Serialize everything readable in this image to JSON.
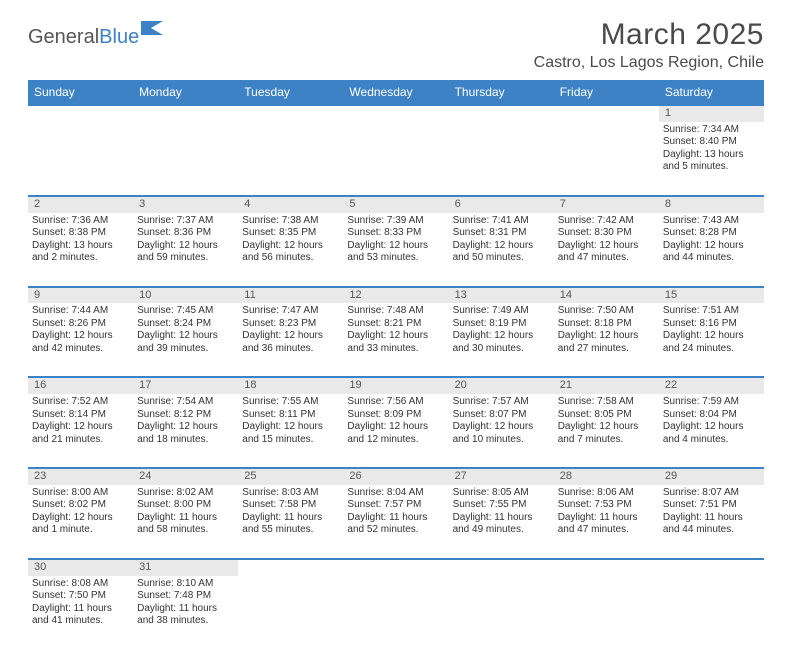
{
  "logo": {
    "text1": "General",
    "text2": "Blue"
  },
  "title": "March 2025",
  "location": "Castro, Los Lagos Region, Chile",
  "colors": {
    "header_bg": "#3d82c4",
    "header_text": "#ffffff",
    "daynum_bg": "#e9e9e9",
    "cell_text": "#333333",
    "page_bg": "#ffffff"
  },
  "typography": {
    "title_fontsize": 30,
    "location_fontsize": 16,
    "weekday_fontsize": 12,
    "cell_fontsize": 10
  },
  "weekdays": [
    "Sunday",
    "Monday",
    "Tuesday",
    "Wednesday",
    "Thursday",
    "Friday",
    "Saturday"
  ],
  "weeks": [
    {
      "nums": [
        "",
        "",
        "",
        "",
        "",
        "",
        "1"
      ],
      "cells": [
        null,
        null,
        null,
        null,
        null,
        null,
        {
          "sunrise": "Sunrise: 7:34 AM",
          "sunset": "Sunset: 8:40 PM",
          "day1": "Daylight: 13 hours",
          "day2": "and 5 minutes."
        }
      ]
    },
    {
      "nums": [
        "2",
        "3",
        "4",
        "5",
        "6",
        "7",
        "8"
      ],
      "cells": [
        {
          "sunrise": "Sunrise: 7:36 AM",
          "sunset": "Sunset: 8:38 PM",
          "day1": "Daylight: 13 hours",
          "day2": "and 2 minutes."
        },
        {
          "sunrise": "Sunrise: 7:37 AM",
          "sunset": "Sunset: 8:36 PM",
          "day1": "Daylight: 12 hours",
          "day2": "and 59 minutes."
        },
        {
          "sunrise": "Sunrise: 7:38 AM",
          "sunset": "Sunset: 8:35 PM",
          "day1": "Daylight: 12 hours",
          "day2": "and 56 minutes."
        },
        {
          "sunrise": "Sunrise: 7:39 AM",
          "sunset": "Sunset: 8:33 PM",
          "day1": "Daylight: 12 hours",
          "day2": "and 53 minutes."
        },
        {
          "sunrise": "Sunrise: 7:41 AM",
          "sunset": "Sunset: 8:31 PM",
          "day1": "Daylight: 12 hours",
          "day2": "and 50 minutes."
        },
        {
          "sunrise": "Sunrise: 7:42 AM",
          "sunset": "Sunset: 8:30 PM",
          "day1": "Daylight: 12 hours",
          "day2": "and 47 minutes."
        },
        {
          "sunrise": "Sunrise: 7:43 AM",
          "sunset": "Sunset: 8:28 PM",
          "day1": "Daylight: 12 hours",
          "day2": "and 44 minutes."
        }
      ]
    },
    {
      "nums": [
        "9",
        "10",
        "11",
        "12",
        "13",
        "14",
        "15"
      ],
      "cells": [
        {
          "sunrise": "Sunrise: 7:44 AM",
          "sunset": "Sunset: 8:26 PM",
          "day1": "Daylight: 12 hours",
          "day2": "and 42 minutes."
        },
        {
          "sunrise": "Sunrise: 7:45 AM",
          "sunset": "Sunset: 8:24 PM",
          "day1": "Daylight: 12 hours",
          "day2": "and 39 minutes."
        },
        {
          "sunrise": "Sunrise: 7:47 AM",
          "sunset": "Sunset: 8:23 PM",
          "day1": "Daylight: 12 hours",
          "day2": "and 36 minutes."
        },
        {
          "sunrise": "Sunrise: 7:48 AM",
          "sunset": "Sunset: 8:21 PM",
          "day1": "Daylight: 12 hours",
          "day2": "and 33 minutes."
        },
        {
          "sunrise": "Sunrise: 7:49 AM",
          "sunset": "Sunset: 8:19 PM",
          "day1": "Daylight: 12 hours",
          "day2": "and 30 minutes."
        },
        {
          "sunrise": "Sunrise: 7:50 AM",
          "sunset": "Sunset: 8:18 PM",
          "day1": "Daylight: 12 hours",
          "day2": "and 27 minutes."
        },
        {
          "sunrise": "Sunrise: 7:51 AM",
          "sunset": "Sunset: 8:16 PM",
          "day1": "Daylight: 12 hours",
          "day2": "and 24 minutes."
        }
      ]
    },
    {
      "nums": [
        "16",
        "17",
        "18",
        "19",
        "20",
        "21",
        "22"
      ],
      "cells": [
        {
          "sunrise": "Sunrise: 7:52 AM",
          "sunset": "Sunset: 8:14 PM",
          "day1": "Daylight: 12 hours",
          "day2": "and 21 minutes."
        },
        {
          "sunrise": "Sunrise: 7:54 AM",
          "sunset": "Sunset: 8:12 PM",
          "day1": "Daylight: 12 hours",
          "day2": "and 18 minutes."
        },
        {
          "sunrise": "Sunrise: 7:55 AM",
          "sunset": "Sunset: 8:11 PM",
          "day1": "Daylight: 12 hours",
          "day2": "and 15 minutes."
        },
        {
          "sunrise": "Sunrise: 7:56 AM",
          "sunset": "Sunset: 8:09 PM",
          "day1": "Daylight: 12 hours",
          "day2": "and 12 minutes."
        },
        {
          "sunrise": "Sunrise: 7:57 AM",
          "sunset": "Sunset: 8:07 PM",
          "day1": "Daylight: 12 hours",
          "day2": "and 10 minutes."
        },
        {
          "sunrise": "Sunrise: 7:58 AM",
          "sunset": "Sunset: 8:05 PM",
          "day1": "Daylight: 12 hours",
          "day2": "and 7 minutes."
        },
        {
          "sunrise": "Sunrise: 7:59 AM",
          "sunset": "Sunset: 8:04 PM",
          "day1": "Daylight: 12 hours",
          "day2": "and 4 minutes."
        }
      ]
    },
    {
      "nums": [
        "23",
        "24",
        "25",
        "26",
        "27",
        "28",
        "29"
      ],
      "cells": [
        {
          "sunrise": "Sunrise: 8:00 AM",
          "sunset": "Sunset: 8:02 PM",
          "day1": "Daylight: 12 hours",
          "day2": "and 1 minute."
        },
        {
          "sunrise": "Sunrise: 8:02 AM",
          "sunset": "Sunset: 8:00 PM",
          "day1": "Daylight: 11 hours",
          "day2": "and 58 minutes."
        },
        {
          "sunrise": "Sunrise: 8:03 AM",
          "sunset": "Sunset: 7:58 PM",
          "day1": "Daylight: 11 hours",
          "day2": "and 55 minutes."
        },
        {
          "sunrise": "Sunrise: 8:04 AM",
          "sunset": "Sunset: 7:57 PM",
          "day1": "Daylight: 11 hours",
          "day2": "and 52 minutes."
        },
        {
          "sunrise": "Sunrise: 8:05 AM",
          "sunset": "Sunset: 7:55 PM",
          "day1": "Daylight: 11 hours",
          "day2": "and 49 minutes."
        },
        {
          "sunrise": "Sunrise: 8:06 AM",
          "sunset": "Sunset: 7:53 PM",
          "day1": "Daylight: 11 hours",
          "day2": "and 47 minutes."
        },
        {
          "sunrise": "Sunrise: 8:07 AM",
          "sunset": "Sunset: 7:51 PM",
          "day1": "Daylight: 11 hours",
          "day2": "and 44 minutes."
        }
      ]
    },
    {
      "nums": [
        "30",
        "31",
        "",
        "",
        "",
        "",
        ""
      ],
      "cells": [
        {
          "sunrise": "Sunrise: 8:08 AM",
          "sunset": "Sunset: 7:50 PM",
          "day1": "Daylight: 11 hours",
          "day2": "and 41 minutes."
        },
        {
          "sunrise": "Sunrise: 8:10 AM",
          "sunset": "Sunset: 7:48 PM",
          "day1": "Daylight: 11 hours",
          "day2": "and 38 minutes."
        },
        null,
        null,
        null,
        null,
        null
      ]
    }
  ]
}
